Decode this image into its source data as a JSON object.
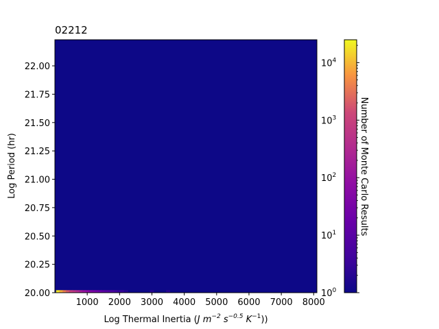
{
  "chart_data": {
    "type": "heatmap",
    "title": "02212",
    "xlabel_prefix": "Log Thermal Inertia (",
    "xlabel_unit": "J m",
    "xlabel_suffix": "))",
    "xlabel_sup1": "−2",
    "xlabel_s": " s",
    "xlabel_sup2": "−0.5",
    "xlabel_K": " K",
    "xlabel_sup3": "−1",
    "ylabel": "Log Period (hr)",
    "xlim": [
      0,
      8100
    ],
    "ylim": [
      20.0,
      22.23
    ],
    "x_ticks": [
      1000,
      2000,
      3000,
      4000,
      5000,
      6000,
      7000,
      8000
    ],
    "x_tick_labels": [
      "1000",
      "2000",
      "3000",
      "4000",
      "5000",
      "6000",
      "7000",
      "8000"
    ],
    "y_ticks": [
      20.0,
      20.25,
      20.5,
      20.75,
      21.0,
      21.25,
      21.5,
      21.75,
      22.0
    ],
    "y_tick_labels": [
      "20.00",
      "20.25",
      "20.50",
      "20.75",
      "21.00",
      "21.25",
      "21.50",
      "21.75",
      "22.00"
    ],
    "background_color": "#0d0887",
    "colormap": "plasma",
    "colorbar": {
      "label": "Number of Monte Carlo Results",
      "scale": "log",
      "range": [
        1,
        25000
      ],
      "ticks": [
        1,
        10,
        100,
        1000,
        10000
      ],
      "tick_bases": [
        "10",
        "10",
        "10",
        "10",
        "10"
      ],
      "tick_exponents": [
        "0",
        "1",
        "2",
        "3",
        "4"
      ]
    },
    "cells": [
      {
        "x": 100,
        "y": 20.01,
        "count": 20000
      },
      {
        "x": 200,
        "y": 20.01,
        "count": 9000
      },
      {
        "x": 300,
        "y": 20.01,
        "count": 4000
      },
      {
        "x": 400,
        "y": 20.01,
        "count": 2000
      },
      {
        "x": 500,
        "y": 20.01,
        "count": 1000
      },
      {
        "x": 600,
        "y": 20.01,
        "count": 600
      },
      {
        "x": 700,
        "y": 20.01,
        "count": 350
      },
      {
        "x": 800,
        "y": 20.01,
        "count": 200
      },
      {
        "x": 900,
        "y": 20.01,
        "count": 120
      },
      {
        "x": 1000,
        "y": 20.01,
        "count": 80
      },
      {
        "x": 1100,
        "y": 20.01,
        "count": 50
      },
      {
        "x": 1200,
        "y": 20.01,
        "count": 35
      },
      {
        "x": 1300,
        "y": 20.01,
        "count": 25
      },
      {
        "x": 1400,
        "y": 20.01,
        "count": 18
      },
      {
        "x": 1500,
        "y": 20.01,
        "count": 12
      },
      {
        "x": 1600,
        "y": 20.01,
        "count": 9
      },
      {
        "x": 1700,
        "y": 20.01,
        "count": 7
      },
      {
        "x": 1800,
        "y": 20.01,
        "count": 6
      },
      {
        "x": 1900,
        "y": 20.01,
        "count": 4
      },
      {
        "x": 2000,
        "y": 20.01,
        "count": 3
      },
      {
        "x": 2100,
        "y": 20.01,
        "count": 3
      },
      {
        "x": 2200,
        "y": 20.01,
        "count": 2
      },
      {
        "x": 3000,
        "y": 20.01,
        "count": 2
      },
      {
        "x": 3500,
        "y": 20.01,
        "count": 2
      }
    ]
  }
}
